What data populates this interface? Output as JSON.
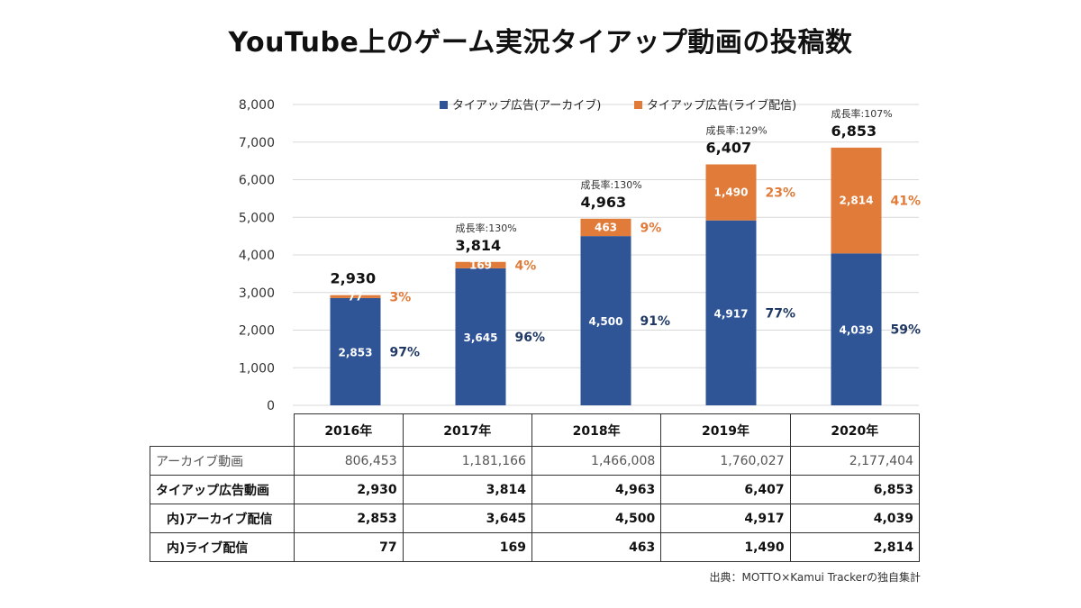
{
  "title": "YouTube上のゲーム実況タイアップ動画の投稿数",
  "chart_data": {
    "type": "bar",
    "stacked": true,
    "categories": [
      "2016年",
      "2017年",
      "2018年",
      "2019年",
      "2020年"
    ],
    "series": [
      {
        "name": "タイアップ広告(アーカイブ)",
        "color": "#2F5597",
        "values": [
          2853,
          3645,
          4500,
          4917,
          4039
        ],
        "labels": [
          "2,853",
          "3,645",
          "4,500",
          "4,917",
          "4,039"
        ],
        "share": [
          "97%",
          "96%",
          "91%",
          "77%",
          "59%"
        ]
      },
      {
        "name": "タイアップ広告(ライブ配信)",
        "color": "#E07B39",
        "values": [
          77,
          169,
          463,
          1490,
          2814
        ],
        "labels": [
          "77",
          "169",
          "463",
          "1,490",
          "2,814"
        ],
        "share": [
          "3%",
          "4%",
          "9%",
          "23%",
          "41%"
        ]
      }
    ],
    "totals": [
      "2,930",
      "3,814",
      "4,963",
      "6,407",
      "6,853"
    ],
    "growth": [
      "",
      "成長率:130%",
      "成長率:130%",
      "成長率:129%",
      "成長率:107%"
    ],
    "yticks": [
      "0",
      "1,000",
      "2,000",
      "3,000",
      "4,000",
      "5,000",
      "6,000",
      "7,000",
      "8,000"
    ],
    "ylim": [
      0,
      8000
    ],
    "grid": true,
    "legend": "top-center"
  },
  "table": {
    "columns": [
      "2016年",
      "2017年",
      "2018年",
      "2019年",
      "2020年"
    ],
    "rows": [
      {
        "label": "アーカイブ動画",
        "values": [
          "806,453",
          "1,181,166",
          "1,466,008",
          "1,760,027",
          "2,177,404"
        ]
      },
      {
        "label": "タイアップ広告動画",
        "values": [
          "2,930",
          "3,814",
          "4,963",
          "6,407",
          "6,853"
        ]
      },
      {
        "label": "内)アーカイブ配信",
        "values": [
          "2,853",
          "3,645",
          "4,500",
          "4,917",
          "4,039"
        ]
      },
      {
        "label": "内)ライブ配信",
        "values": [
          "77",
          "169",
          "463",
          "1,490",
          "2,814"
        ]
      }
    ]
  },
  "source": "出典：MOTTO×Kamui Trackerの独自集計"
}
